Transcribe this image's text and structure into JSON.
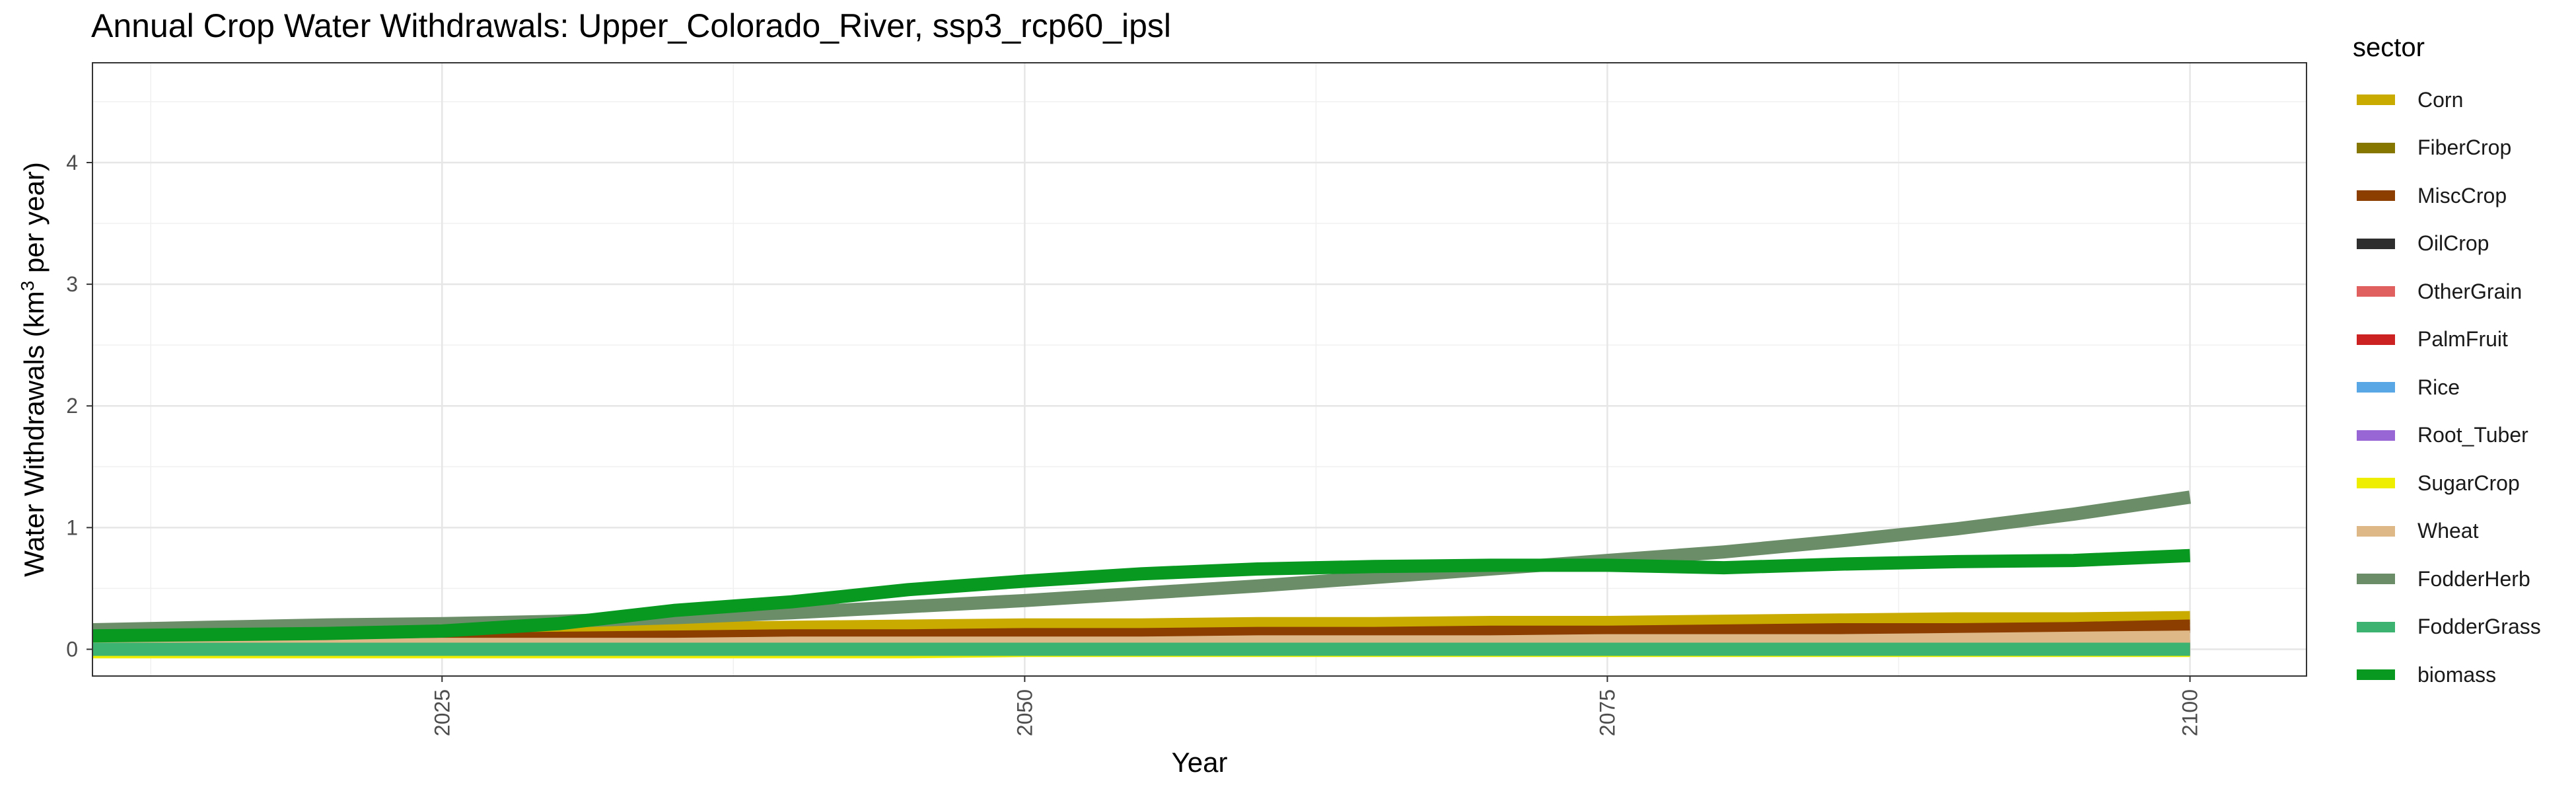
{
  "chart_data": {
    "type": "line",
    "title": "Annual Crop Water Withdrawals: Upper_Colorado_River, ssp3_rcp60_ipsl",
    "xlabel": "Year",
    "ylabel_main": "Water Withdrawals (km",
    "ylabel_sup": "3",
    "ylabel_end": " per year)",
    "xlim": [
      2010,
      2105
    ],
    "ylim": [
      -0.22,
      4.82
    ],
    "x_ticks": [
      2025,
      2050,
      2075,
      2100
    ],
    "y_ticks": [
      0,
      1,
      2,
      3,
      4
    ],
    "grid": true,
    "legend_title": "sector",
    "legend_position": "right",
    "x": [
      2010,
      2015,
      2020,
      2025,
      2030,
      2035,
      2040,
      2045,
      2050,
      2055,
      2060,
      2065,
      2070,
      2075,
      2080,
      2085,
      2090,
      2095,
      2100
    ],
    "series": [
      {
        "name": "Corn",
        "color": "#C9AB00",
        "values": [
          0.1,
          0.11,
          0.12,
          0.13,
          0.15,
          0.17,
          0.18,
          0.19,
          0.2,
          0.2,
          0.21,
          0.21,
          0.22,
          0.22,
          0.23,
          0.24,
          0.25,
          0.25,
          0.26
        ]
      },
      {
        "name": "FiberCrop",
        "color": "#857700",
        "values": [
          0.02,
          0.02,
          0.02,
          0.02,
          0.02,
          0.02,
          0.02,
          0.02,
          0.02,
          0.02,
          0.02,
          0.02,
          0.02,
          0.02,
          0.02,
          0.02,
          0.02,
          0.02,
          0.02
        ]
      },
      {
        "name": "MiscCrop",
        "color": "#8B3E00",
        "values": [
          0.06,
          0.07,
          0.08,
          0.08,
          0.09,
          0.1,
          0.11,
          0.11,
          0.12,
          0.12,
          0.13,
          0.13,
          0.14,
          0.14,
          0.15,
          0.16,
          0.16,
          0.17,
          0.19
        ]
      },
      {
        "name": "OilCrop",
        "color": "#2E2E2E",
        "values": [
          0.0,
          0.0,
          0.0,
          0.0,
          0.0,
          0.0,
          0.0,
          0.0,
          0.0,
          0.0,
          0.0,
          0.0,
          0.0,
          0.0,
          0.0,
          0.0,
          0.0,
          0.0,
          0.0
        ]
      },
      {
        "name": "OtherGrain",
        "color": "#E06060",
        "values": [
          0.02,
          0.02,
          0.02,
          0.02,
          0.02,
          0.02,
          0.02,
          0.02,
          0.02,
          0.02,
          0.02,
          0.02,
          0.02,
          0.02,
          0.02,
          0.02,
          0.02,
          0.02,
          0.02
        ]
      },
      {
        "name": "PalmFruit",
        "color": "#CC2222",
        "values": [
          0.0,
          0.0,
          0.0,
          0.0,
          0.0,
          0.0,
          0.0,
          0.0,
          0.0,
          0.0,
          0.0,
          0.0,
          0.0,
          0.0,
          0.0,
          0.0,
          0.0,
          0.0,
          0.0
        ]
      },
      {
        "name": "Rice",
        "color": "#5AA7E6",
        "values": [
          0.0,
          0.0,
          0.0,
          0.0,
          0.0,
          0.0,
          0.0,
          0.0,
          0.0,
          0.0,
          0.0,
          0.0,
          0.0,
          0.0,
          0.0,
          0.0,
          0.0,
          0.0,
          0.0
        ]
      },
      {
        "name": "Root_Tuber",
        "color": "#9966D6",
        "values": [
          0.0,
          0.0,
          0.0,
          0.0,
          0.0,
          0.0,
          0.0,
          0.0,
          0.0,
          0.0,
          0.0,
          0.0,
          0.0,
          0.0,
          0.0,
          0.0,
          0.0,
          0.0,
          0.0
        ]
      },
      {
        "name": "SugarCrop",
        "color": "#EEEE00",
        "values": [
          -0.02,
          -0.02,
          -0.02,
          -0.02,
          -0.02,
          -0.02,
          -0.02,
          -0.02,
          -0.01,
          -0.01,
          -0.01,
          -0.01,
          -0.01,
          -0.01,
          -0.01,
          -0.01,
          -0.01,
          -0.01,
          -0.01
        ]
      },
      {
        "name": "Wheat",
        "color": "#DEB887",
        "values": [
          0.03,
          0.03,
          0.03,
          0.04,
          0.04,
          0.04,
          0.05,
          0.05,
          0.05,
          0.05,
          0.06,
          0.06,
          0.06,
          0.07,
          0.07,
          0.07,
          0.08,
          0.09,
          0.1
        ]
      },
      {
        "name": "FodderHerb",
        "color": "#6B8E68",
        "values": [
          0.16,
          0.18,
          0.2,
          0.21,
          0.23,
          0.26,
          0.3,
          0.35,
          0.4,
          0.46,
          0.52,
          0.59,
          0.66,
          0.73,
          0.8,
          0.89,
          0.99,
          1.11,
          1.25
        ]
      },
      {
        "name": "FodderGrass",
        "color": "#3CB371",
        "values": [
          0.0,
          0.0,
          0.0,
          0.0,
          0.0,
          0.0,
          0.0,
          0.0,
          0.0,
          0.0,
          0.0,
          0.0,
          0.0,
          0.0,
          0.0,
          0.0,
          0.0,
          0.0,
          0.0
        ]
      },
      {
        "name": "biomass",
        "color": "#079920",
        "values": [
          0.11,
          0.12,
          0.13,
          0.15,
          0.21,
          0.32,
          0.39,
          0.49,
          0.56,
          0.62,
          0.66,
          0.68,
          0.69,
          0.69,
          0.67,
          0.7,
          0.72,
          0.73,
          0.77
        ]
      }
    ]
  }
}
